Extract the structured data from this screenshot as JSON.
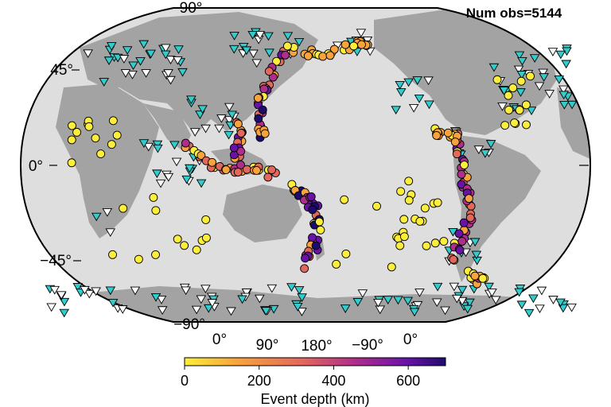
{
  "title": "Num obs=5144",
  "map": {
    "projection": "Winkel-like world map centered on the Pacific",
    "ocean_color": "#dedede",
    "land_color": "#a3a3a3",
    "lat_labels": [
      {
        "text": "90°",
        "lat": 90
      },
      {
        "text": "45°",
        "lat": 45
      },
      {
        "text": "0°",
        "lat": 0
      },
      {
        "text": "−45°",
        "lat": -45
      },
      {
        "text": "−90°",
        "lat": -90
      }
    ],
    "lon_labels": [
      {
        "text": "0°",
        "lon": 0
      },
      {
        "text": "90°",
        "lon": 90
      },
      {
        "text": "180°",
        "lon": 180
      },
      {
        "text": "−90°",
        "lon": -90
      },
      {
        "text": "0°",
        "lon": 360
      }
    ]
  },
  "stations": {
    "symbol": "inverted-triangle",
    "colors": [
      "#ffffff",
      "#33cccc"
    ]
  },
  "colorbar": {
    "label": "Event depth (km)",
    "ticks": [
      0,
      200,
      400,
      600
    ],
    "range": [
      0,
      700
    ],
    "colors": [
      "#fcee3b",
      "#f9a33c",
      "#e3685c",
      "#b02e8b",
      "#6a12a8",
      "#1e0b6e"
    ]
  }
}
